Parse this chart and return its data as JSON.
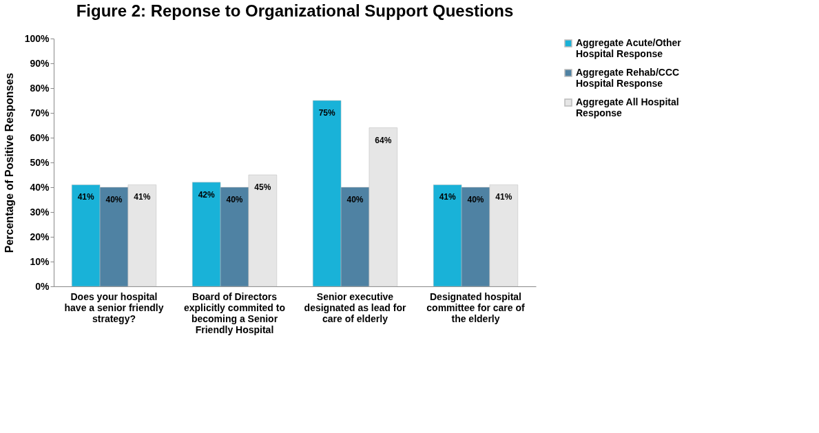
{
  "chart_data": {
    "type": "bar",
    "title": "Figure 2: Reponse to Organizational Support Questions",
    "ylabel": "Percentage of Positive Responses",
    "categories": [
      "Does your hospital have a senior friendly strategy?",
      "Board of Directors explicitly commited to becoming a Senior Friendly Hospital",
      "Senior executive designated as lead for care of elderly",
      "Designated hospital committee for care of the elderly"
    ],
    "series": [
      {
        "name": "Aggregate Acute/Other Hospital Response",
        "color": "#19b2d8",
        "values": [
          41,
          42,
          75,
          41
        ]
      },
      {
        "name": "Aggregate Rehab/CCC Hospital Response",
        "color": "#4f82a3",
        "values": [
          40,
          40,
          40,
          40
        ]
      },
      {
        "name": "Aggregate All Hospital Response",
        "color": "#e6e6e6",
        "values": [
          41,
          45,
          64,
          41
        ]
      }
    ],
    "value_labels": [
      [
        "41%",
        "42%",
        "75%",
        "41%"
      ],
      [
        "40%",
        "40%",
        "40%",
        "40%"
      ],
      [
        "41%",
        "45%",
        "64%",
        "41%"
      ]
    ],
    "ylim": [
      0,
      100
    ],
    "yticks": [
      {
        "value": 0,
        "label": "0%"
      },
      {
        "value": 10,
        "label": "10%"
      },
      {
        "value": 20,
        "label": "20%"
      },
      {
        "value": 30,
        "label": "30%"
      },
      {
        "value": 40,
        "label": "40%"
      },
      {
        "value": 50,
        "label": "50%"
      },
      {
        "value": 60,
        "label": "60%"
      },
      {
        "value": 70,
        "label": "70%"
      },
      {
        "value": 80,
        "label": "80%"
      },
      {
        "value": 90,
        "label": "90%"
      },
      {
        "value": 100,
        "label": "100%"
      }
    ],
    "grid": false,
    "legend": "right"
  }
}
